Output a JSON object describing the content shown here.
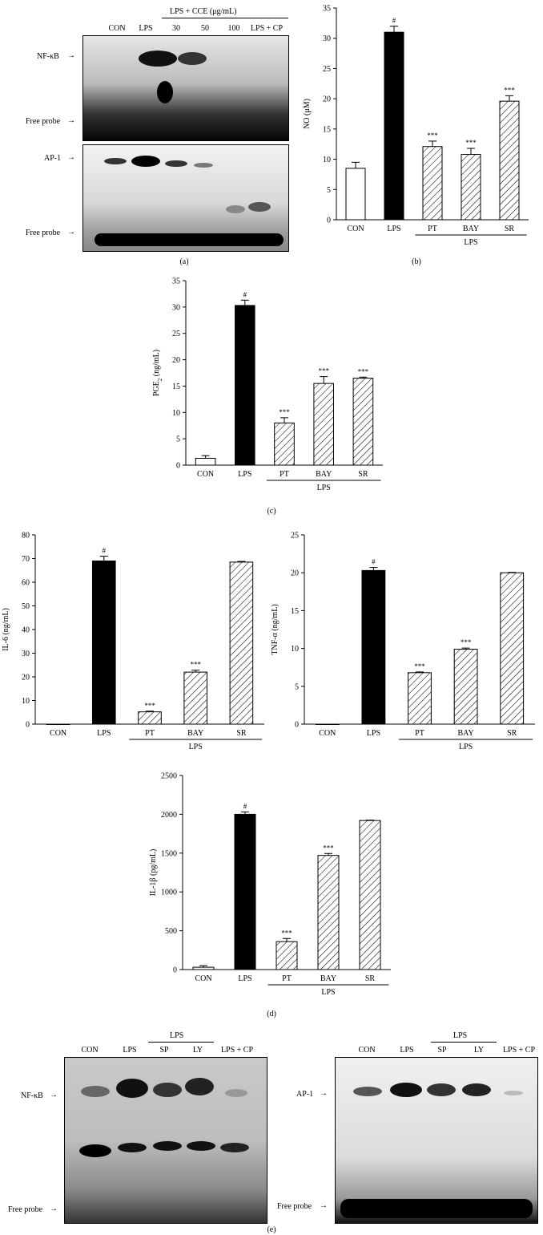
{
  "panels": {
    "a": {
      "letter": "(a)",
      "header": "LPS + CCE (μg/mL)",
      "lanes": [
        "CON",
        "LPS",
        "30",
        "50",
        "100",
        "LPS + CP"
      ],
      "gel1_label": "NF-κB",
      "gel2_label": "AP-1",
      "free_probe": "Free probe",
      "arrow": "→"
    },
    "b": {
      "letter": "(b)"
    },
    "c": {
      "letter": "(c)"
    },
    "d": {
      "letter": "(d)"
    },
    "e": {
      "letter": "(e)",
      "left": {
        "label": "NF-κB",
        "lps_group": "LPS",
        "lanes": [
          "CON",
          "LPS",
          "SP",
          "LY",
          "LPS + CP"
        ],
        "free_probe": "Free probe"
      },
      "right": {
        "label": "AP-1",
        "lps_group": "LPS",
        "lanes": [
          "CON",
          "LPS",
          "SP",
          "LY",
          "LPS + CP"
        ],
        "free_probe": "Free probe"
      }
    }
  },
  "colors": {
    "bar_black": "#000000",
    "bar_white": "#ffffff",
    "hatch": "#000000"
  },
  "chart_data": [
    {
      "id": "b",
      "type": "bar",
      "categories": [
        "CON",
        "LPS",
        "PT",
        "BAY",
        "SR"
      ],
      "values": [
        8.5,
        31.0,
        12.1,
        10.8,
        19.6
      ],
      "errors": [
        1.0,
        1.0,
        0.9,
        1.0,
        0.9
      ],
      "annotations": [
        "",
        "#",
        "***",
        "***",
        "***"
      ],
      "styles": [
        "white",
        "black",
        "hatch",
        "hatch",
        "hatch"
      ],
      "group_label": "LPS",
      "group_start": 2,
      "group_end": 4,
      "ylabel": "NO (μM)",
      "ylim": [
        0,
        35
      ],
      "yticks": [
        0,
        5,
        10,
        15,
        20,
        25,
        30,
        35
      ]
    },
    {
      "id": "c",
      "type": "bar",
      "categories": [
        "CON",
        "LPS",
        "PT",
        "BAY",
        "SR"
      ],
      "values": [
        1.3,
        30.3,
        8.0,
        15.5,
        16.5
      ],
      "errors": [
        0.5,
        1.0,
        1.0,
        1.3,
        0.2
      ],
      "annotations": [
        "",
        "#",
        "***",
        "***",
        "***"
      ],
      "styles": [
        "white",
        "black",
        "hatch",
        "hatch",
        "hatch"
      ],
      "group_label": "LPS",
      "group_start": 2,
      "group_end": 4,
      "ylabel": "PGE2 (ng/mL)",
      "ylim": [
        0,
        35
      ],
      "yticks": [
        0,
        5,
        10,
        15,
        20,
        25,
        30,
        35
      ]
    },
    {
      "id": "d1",
      "type": "bar",
      "categories": [
        "CON",
        "LPS",
        "PT",
        "BAY",
        "SR"
      ],
      "values": [
        0,
        69,
        5.2,
        22,
        68.5
      ],
      "errors": [
        0,
        2,
        0.3,
        0.8,
        0.3
      ],
      "annotations": [
        "",
        "#",
        "***",
        "***",
        ""
      ],
      "styles": [
        "white",
        "black",
        "hatch",
        "hatch",
        "hatch"
      ],
      "group_label": "LPS",
      "group_start": 2,
      "group_end": 4,
      "ylabel": "IL-6 (ng/mL)",
      "ylim": [
        0,
        80
      ],
      "yticks": [
        0,
        10,
        20,
        30,
        40,
        50,
        60,
        70,
        80
      ]
    },
    {
      "id": "d2",
      "type": "bar",
      "categories": [
        "CON",
        "LPS",
        "PT",
        "BAY",
        "SR"
      ],
      "values": [
        0,
        20.3,
        6.8,
        9.9,
        20.0
      ],
      "errors": [
        0,
        0.4,
        0.1,
        0.15,
        0.05
      ],
      "annotations": [
        "",
        "#",
        "***",
        "***",
        ""
      ],
      "styles": [
        "white",
        "black",
        "hatch",
        "hatch",
        "hatch"
      ],
      "group_label": "LPS",
      "group_start": 2,
      "group_end": 4,
      "ylabel": "TNF-α (ng/mL)",
      "ylim": [
        0,
        25
      ],
      "yticks": [
        0,
        5,
        10,
        15,
        20,
        25
      ]
    },
    {
      "id": "d3",
      "type": "bar",
      "categories": [
        "CON",
        "LPS",
        "PT",
        "BAY",
        "SR"
      ],
      "values": [
        30,
        2000,
        360,
        1470,
        1920
      ],
      "errors": [
        20,
        30,
        40,
        25,
        5
      ],
      "annotations": [
        "",
        "#",
        "***",
        "***",
        ""
      ],
      "styles": [
        "white",
        "black",
        "hatch",
        "hatch",
        "hatch"
      ],
      "group_label": "LPS",
      "group_start": 2,
      "group_end": 4,
      "ylabel": "IL-1β (pg/mL)",
      "ylim": [
        0,
        2500
      ],
      "yticks": [
        0,
        500,
        1000,
        1500,
        2000,
        2500
      ]
    }
  ]
}
